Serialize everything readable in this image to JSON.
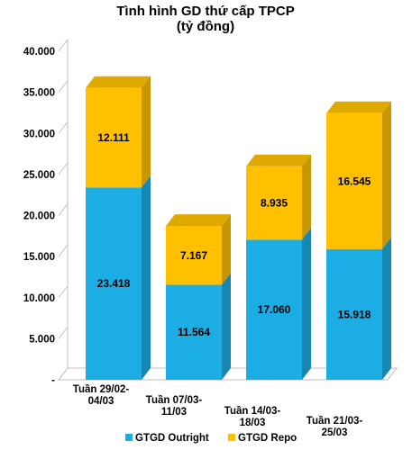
{
  "chart_data": {
    "type": "bar",
    "stacked": true,
    "three_d": true,
    "title": "Tình hình GD thứ cấp TPCP",
    "subtitle": "(tỷ đồng)",
    "categories": [
      [
        "Tuần 29/02-",
        "04/03"
      ],
      [
        "Tuần 07/03-",
        "11/03"
      ],
      [
        "Tuần 14/03-",
        "18/03"
      ],
      [
        "Tuần 21/03-",
        "25/03"
      ]
    ],
    "series": [
      {
        "name": "GTGD Outright",
        "color": "#1BADE4",
        "values": [
          23418,
          11564,
          17060,
          15918
        ],
        "labels": [
          "23.418",
          "11.564",
          "17.060",
          "15.918"
        ]
      },
      {
        "name": "GTGD Repo",
        "color": "#FFC000",
        "values": [
          12111,
          7167,
          8935,
          16545
        ],
        "labels": [
          "12.111",
          "7.167",
          "8.935",
          "16.545"
        ]
      }
    ],
    "y_ticks": [
      "-",
      "5.000",
      "10.000",
      "15.000",
      "20.000",
      "25.000",
      "30.000",
      "35.000",
      "40.000"
    ],
    "ylim": [
      0,
      40000
    ],
    "grid": false,
    "legend": "bottom"
  }
}
